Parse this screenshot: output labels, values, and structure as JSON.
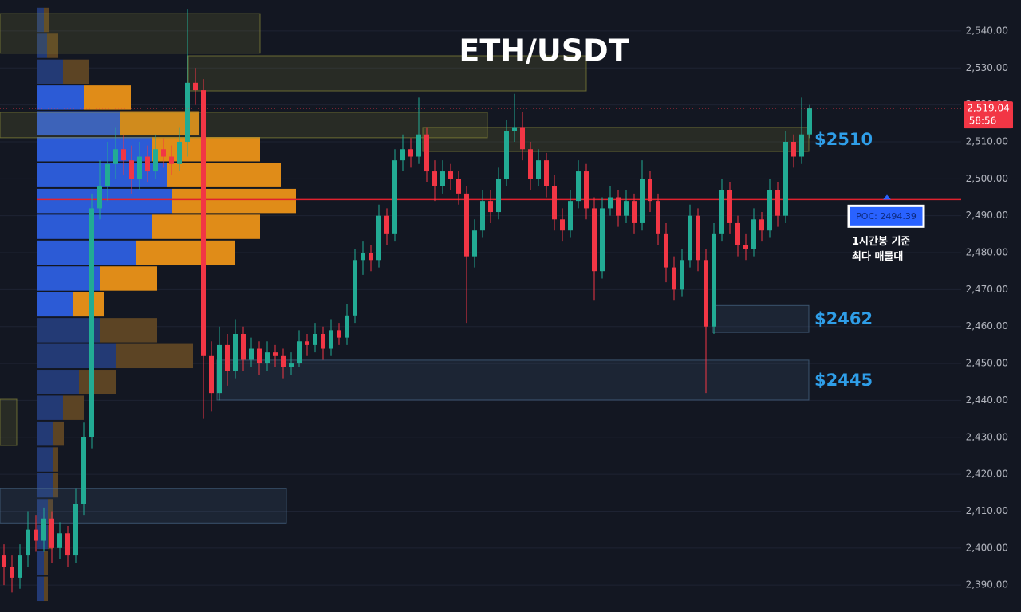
{
  "chart_data": {
    "type": "candlestick",
    "title": "ETH/USDT",
    "ylim": [
      2382.7,
      2548.4
    ],
    "yticks": [
      {
        "value": 2390,
        "label": "2,390.00"
      },
      {
        "value": 2400,
        "label": "2,400.00"
      },
      {
        "value": 2410,
        "label": "2,410.00"
      },
      {
        "value": 2420,
        "label": "2,420.00"
      },
      {
        "value": 2430,
        "label": "2,430.00"
      },
      {
        "value": 2440,
        "label": "2,440.00"
      },
      {
        "value": 2450,
        "label": "2,450.00"
      },
      {
        "value": 2460,
        "label": "2,460.00"
      },
      {
        "value": 2470,
        "label": "2,470.00"
      },
      {
        "value": 2480,
        "label": "2,480.00"
      },
      {
        "value": 2490,
        "label": "2,490.00"
      },
      {
        "value": 2500,
        "label": "2,500.00"
      },
      {
        "value": 2510,
        "label": "2,510.00"
      },
      {
        "value": 2520,
        "label": "2,520.00"
      },
      {
        "value": 2530,
        "label": "2,530.00"
      },
      {
        "value": 2540,
        "label": "2,540.00"
      }
    ],
    "grid": true,
    "up_color": "#22ab94",
    "down_color": "#f23645",
    "candles": [
      [
        2398,
        2401,
        2390,
        2395
      ],
      [
        2395,
        2398,
        2388,
        2392
      ],
      [
        2392,
        2401,
        2389,
        2398
      ],
      [
        2398,
        2410,
        2395,
        2405
      ],
      [
        2405,
        2409,
        2399,
        2402
      ],
      [
        2402,
        2411,
        2399,
        2408
      ],
      [
        2408,
        2410,
        2396,
        2400
      ],
      [
        2400,
        2407,
        2397,
        2404
      ],
      [
        2404,
        2406,
        2395,
        2398
      ],
      [
        2398,
        2416,
        2396,
        2412
      ],
      [
        2412,
        2434,
        2409,
        2430
      ],
      [
        2430,
        2496,
        2427,
        2492
      ],
      [
        2492,
        2505,
        2489,
        2498
      ],
      [
        2498,
        2510,
        2494,
        2504
      ],
      [
        2504,
        2514,
        2500,
        2508
      ],
      [
        2508,
        2512,
        2501,
        2505
      ],
      [
        2505,
        2509,
        2496,
        2500
      ],
      [
        2500,
        2510,
        2497,
        2506
      ],
      [
        2506,
        2509,
        2499,
        2502
      ],
      [
        2502,
        2512,
        2500,
        2508
      ],
      [
        2508,
        2511,
        2503,
        2506
      ],
      [
        2506,
        2509,
        2501,
        2504
      ],
      [
        2504,
        2514,
        2502,
        2510
      ],
      [
        2510,
        2546,
        2506,
        2526
      ],
      [
        2526,
        2530,
        2520,
        2524
      ],
      [
        2524,
        2527,
        2435,
        2452
      ],
      [
        2452,
        2456,
        2437,
        2442
      ],
      [
        2442,
        2460,
        2440,
        2455
      ],
      [
        2455,
        2458,
        2444,
        2448
      ],
      [
        2448,
        2462,
        2446,
        2458
      ],
      [
        2458,
        2460,
        2448,
        2451
      ],
      [
        2451,
        2457,
        2449,
        2454
      ],
      [
        2454,
        2456,
        2447,
        2450
      ],
      [
        2450,
        2456,
        2448,
        2453
      ],
      [
        2453,
        2455,
        2449,
        2452
      ],
      [
        2452,
        2454,
        2446,
        2449
      ],
      [
        2449,
        2453,
        2447,
        2450
      ],
      [
        2450,
        2459,
        2449,
        2456
      ],
      [
        2456,
        2458,
        2452,
        2455
      ],
      [
        2455,
        2461,
        2453,
        2458
      ],
      [
        2458,
        2460,
        2451,
        2454
      ],
      [
        2454,
        2462,
        2452,
        2459
      ],
      [
        2459,
        2461,
        2455,
        2457
      ],
      [
        2457,
        2466,
        2455,
        2463
      ],
      [
        2463,
        2481,
        2461,
        2478
      ],
      [
        2478,
        2483,
        2474,
        2480
      ],
      [
        2480,
        2482,
        2475,
        2478
      ],
      [
        2478,
        2493,
        2476,
        2490
      ],
      [
        2490,
        2492,
        2482,
        2485
      ],
      [
        2485,
        2508,
        2483,
        2505
      ],
      [
        2505,
        2512,
        2502,
        2508
      ],
      [
        2508,
        2511,
        2503,
        2506
      ],
      [
        2506,
        2522,
        2504,
        2512
      ],
      [
        2512,
        2514,
        2499,
        2502
      ],
      [
        2502,
        2505,
        2494,
        2498
      ],
      [
        2498,
        2505,
        2496,
        2502
      ],
      [
        2502,
        2504,
        2497,
        2500
      ],
      [
        2500,
        2502,
        2493,
        2496
      ],
      [
        2496,
        2498,
        2461,
        2479
      ],
      [
        2479,
        2489,
        2476,
        2486
      ],
      [
        2486,
        2497,
        2484,
        2494
      ],
      [
        2494,
        2497,
        2488,
        2491
      ],
      [
        2491,
        2503,
        2489,
        2500
      ],
      [
        2500,
        2516,
        2498,
        2513
      ],
      [
        2513,
        2523,
        2510,
        2514
      ],
      [
        2514,
        2518,
        2505,
        2508
      ],
      [
        2508,
        2510,
        2497,
        2500
      ],
      [
        2500,
        2508,
        2498,
        2505
      ],
      [
        2505,
        2507,
        2495,
        2498
      ],
      [
        2498,
        2501,
        2486,
        2489
      ],
      [
        2489,
        2492,
        2483,
        2486
      ],
      [
        2486,
        2497,
        2484,
        2494
      ],
      [
        2494,
        2505,
        2492,
        2502
      ],
      [
        2502,
        2504,
        2489,
        2492
      ],
      [
        2492,
        2495,
        2467,
        2475
      ],
      [
        2475,
        2495,
        2473,
        2492
      ],
      [
        2492,
        2498,
        2490,
        2495
      ],
      [
        2495,
        2497,
        2487,
        2490
      ],
      [
        2490,
        2497,
        2488,
        2494
      ],
      [
        2494,
        2496,
        2485,
        2488
      ],
      [
        2488,
        2505,
        2486,
        2500
      ],
      [
        2500,
        2502,
        2491,
        2494
      ],
      [
        2494,
        2496,
        2482,
        2485
      ],
      [
        2485,
        2488,
        2472,
        2476
      ],
      [
        2476,
        2479,
        2467,
        2470
      ],
      [
        2470,
        2481,
        2468,
        2478
      ],
      [
        2478,
        2493,
        2476,
        2490
      ],
      [
        2490,
        2492,
        2475,
        2478
      ],
      [
        2478,
        2481,
        2442,
        2460
      ],
      [
        2460,
        2488,
        2458,
        2485
      ],
      [
        2485,
        2500,
        2483,
        2497
      ],
      [
        2497,
        2499,
        2485,
        2488
      ],
      [
        2488,
        2490,
        2479,
        2482
      ],
      [
        2482,
        2485,
        2478,
        2481
      ],
      [
        2481,
        2492,
        2479,
        2489
      ],
      [
        2489,
        2491,
        2483,
        2486
      ],
      [
        2486,
        2500,
        2484,
        2497
      ],
      [
        2497,
        2499,
        2487,
        2490
      ],
      [
        2490,
        2513,
        2488,
        2510
      ],
      [
        2510,
        2512,
        2503,
        2506
      ],
      [
        2506,
        2522,
        2504,
        2512
      ],
      [
        2512,
        2520,
        2511,
        2519.04
      ]
    ],
    "volume_profile": [
      {
        "low": 2539.5,
        "high": 2546.5,
        "buy": 8,
        "sell": 6
      },
      {
        "low": 2532.5,
        "high": 2539.5,
        "buy": 12,
        "sell": 14
      },
      {
        "low": 2525.5,
        "high": 2532.5,
        "buy": 32,
        "sell": 33
      },
      {
        "low": 2518.5,
        "high": 2525.5,
        "buy": 58,
        "sell": 59
      },
      {
        "low": 2511.5,
        "high": 2518.5,
        "buy": 103,
        "sell": 99
      },
      {
        "low": 2504.5,
        "high": 2511.5,
        "buy": 143,
        "sell": 136
      },
      {
        "low": 2497.5,
        "high": 2504.5,
        "buy": 162,
        "sell": 143
      },
      {
        "low": 2490.5,
        "high": 2497.5,
        "buy": 169,
        "sell": 155
      },
      {
        "low": 2483.5,
        "high": 2490.5,
        "buy": 143,
        "sell": 136
      },
      {
        "low": 2476.5,
        "high": 2483.5,
        "buy": 124,
        "sell": 123
      },
      {
        "low": 2469.5,
        "high": 2476.5,
        "buy": 78,
        "sell": 72
      },
      {
        "low": 2462.5,
        "high": 2469.5,
        "buy": 45,
        "sell": 39
      },
      {
        "low": 2455.5,
        "high": 2462.5,
        "buy": 78,
        "sell": 72
      },
      {
        "low": 2448.5,
        "high": 2455.5,
        "buy": 98,
        "sell": 97
      },
      {
        "low": 2441.5,
        "high": 2448.5,
        "buy": 52,
        "sell": 46
      },
      {
        "low": 2434.5,
        "high": 2441.5,
        "buy": 32,
        "sell": 26
      },
      {
        "low": 2427.5,
        "high": 2434.5,
        "buy": 19,
        "sell": 14
      },
      {
        "low": 2420.5,
        "high": 2427.5,
        "buy": 19,
        "sell": 7
      },
      {
        "low": 2413.5,
        "high": 2420.5,
        "buy": 19,
        "sell": 7
      },
      {
        "low": 2406.5,
        "high": 2413.5,
        "buy": 13,
        "sell": 6
      },
      {
        "low": 2399.5,
        "high": 2406.5,
        "buy": 13,
        "sell": 6
      },
      {
        "low": 2392.5,
        "high": 2399.5,
        "buy": 8,
        "sell": 5
      },
      {
        "low": 2385.5,
        "high": 2392.5,
        "buy": 8,
        "sell": 5
      }
    ],
    "value_area": [
      2462.5,
      2525.5
    ],
    "zones": [
      {
        "low": 2534.0,
        "high": 2544.7,
        "from": -0.5,
        "to": 32.1,
        "color": "#8a8a3a"
      },
      {
        "low": 2523.8,
        "high": 2533.3,
        "from": 23.1,
        "to": 73.0,
        "color": "#8a8a3a"
      },
      {
        "low": 2511.1,
        "high": 2518.0,
        "from": -0.5,
        "to": 60.6,
        "color": "#8a8a3a"
      },
      {
        "low": 2507.4,
        "high": 2513.9,
        "from": 52.5,
        "to": 100.9,
        "color": "#8a8a3a",
        "label": "$2510"
      },
      {
        "low": 2458.4,
        "high": 2465.7,
        "from": 88.8,
        "to": 100.9,
        "color": "#4a6a8a",
        "label": "$2462"
      },
      {
        "low": 2440.1,
        "high": 2450.9,
        "from": 26.7,
        "to": 100.9,
        "color": "#4a6a8a",
        "label": "$2445"
      },
      {
        "low": 2406.8,
        "high": 2416.1,
        "from": -0.5,
        "to": 35.4,
        "color": "#4a6a8a"
      },
      {
        "low": 2427.8,
        "high": 2440.3,
        "from": -0.5,
        "to": 1.6,
        "color": "#8a8a3a"
      }
    ],
    "poc": {
      "value": 2494.39,
      "label": "POC: 2494.39"
    },
    "poc_note": [
      "1시간봉 기준",
      "최다 매물대"
    ],
    "last_price": {
      "value": 2519.04,
      "label": "2,519.04"
    },
    "countdown": "58:56"
  }
}
